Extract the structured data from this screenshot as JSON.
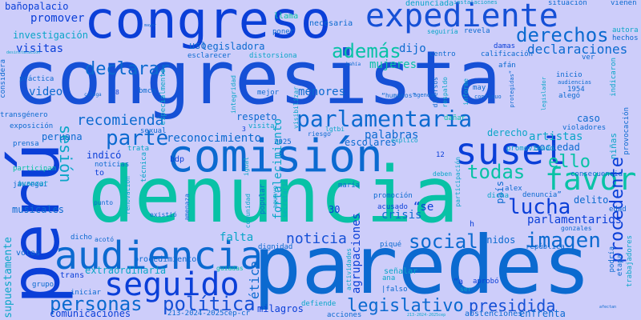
{
  "colors": {
    "background": "#cdcdfa",
    "deep_blue": "#0a3fd8",
    "blue": "#0b6ad0",
    "cyan": "#0aa6c8",
    "teal": "#08c2a6",
    "medium_blue": "#1550d6"
  },
  "words": [
    "congresista",
    "paredes",
    "denuncia",
    "perú",
    "congreso",
    "comisión",
    "expediente",
    "susel",
    "audiencia",
    "seguido",
    "favor",
    "parlamentaria",
    "personas",
    "política",
    "legislativo",
    "derechos",
    "además",
    "lucha",
    "parte",
    "todas",
    "imagen",
    "social",
    "noticia",
    "recomienda",
    "sesión",
    "reconocimiento",
    "ello",
    "procedente",
    "presidida",
    "declarar",
    "declaraciones",
    "investigación",
    "bañopalacio",
    "promover",
    "visitas",
    "video",
    "legisladora",
    "dijo",
    "mujeres",
    "menores",
    "respeto",
    "artistas",
    "sociedad",
    "derecho",
    "caso",
    "parlamentarios",
    "unidos",
    "delito",
    "falta",
    "ética",
    "milagros",
    "agrupaciones",
    "crisis",
    "escolares",
    "palabras",
    "fortalecimiento",
    "dignidad",
    "extraordinaria",
    "comunicaciones",
    "procedimiento",
    "musicales",
    "peruana",
    "indicó",
    "bdp",
    "uso",
    "30",
    "“se",
    "acusado",
    "país",
    "alex",
    "trans",
    "votos",
    "supuestamente",
    "enfrenta",
    "abstenciones",
    "aprobó",
    "señalar",
    "ana",
    "necesaria",
    "poner",
    "llama",
    "denunciada",
    "instalaciones",
    "situación",
    "vienen",
    "autora",
    "hechos",
    "revela",
    "seguiría",
    "damas",
    "centro",
    "calificación",
    "ver",
    "afán",
    "inicio",
    "audiencias",
    "1954",
    "indicaron",
    "trabajadores",
    "podría",
    "república",
    "etapa",
    "grupo",
    "acciones",
    "defiende",
    "213-2024-2025cep-cr",
    "iniciar",
    "guiadas",
    "existió",
    "amenaza",
    "to",
    "noticias",
    "técnica",
    "trata",
    "sexual",
    "participan",
    "jáuregui",
    "avanzar",
    "exposición",
    "transgénero",
    "considera",
    "prensa",
    "práctica",
    "bmcn",
    "especialmente",
    "esclarecer",
    "distorsiona",
    "integridad",
    "mejor",
    "visitar",
    "lgtbi",
    "riesgo",
    "2025",
    "explicó",
    "promoviendo",
    "violadores",
    "provocación",
    "consecuencia",
    "edad",
    "gonzales",
    "niñas",
    "piqué",
    "dicha",
    "promoción",
    "denuncia”",
    "participación",
    "deben",
    "“a",
    "ser",
    "acotó",
    "dicho",
    "punto",
    "renovación",
    "igual",
    "comunidad",
    "popular",
    "aguayo",
    "secretaría",
    "maría",
    "12",
    "h",
    "|falso",
    "actividades",
    "“humanos”",
    "respaldo",
    "informe",
    "diversos",
    "may",
    "alegó",
    "protegidas”",
    "legislador",
    "continuo",
    "agenda",
    "colega",
    "bahía",
    "dañar",
    "8",
    "3",
    "mayor",
    "afectan",
    "213-2024-2025cep",
    "desinstalación",
    "visibilizar"
  ]
}
